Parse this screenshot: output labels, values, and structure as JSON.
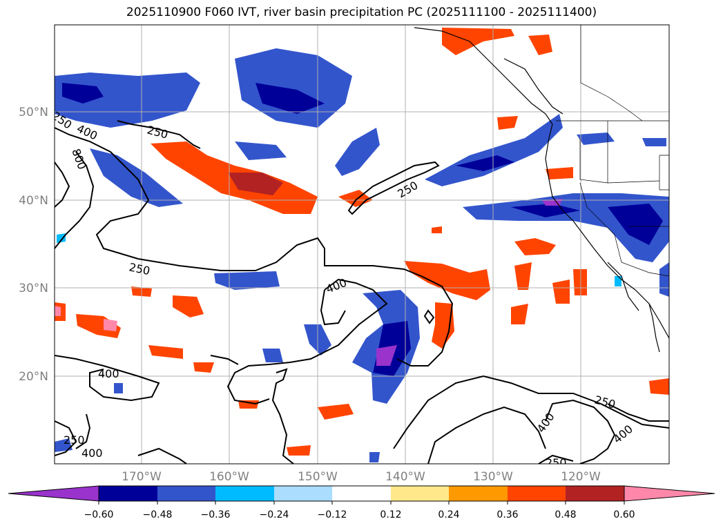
{
  "title": "2025110900 F060 IVT, river basin precipitation PC (2025111100 - 2025111400)",
  "lat_labels": [
    "50°N",
    "40°N",
    "30°N",
    "20°N"
  ],
  "lon_labels": [
    "170°W",
    "160°W",
    "150°W",
    "140°W",
    "130°W",
    "120°W"
  ],
  "colorbar": {
    "ticks": [
      "−0.60",
      "−0.48",
      "−0.36",
      "−0.24",
      "−0.12",
      "0.12",
      "0.24",
      "0.36",
      "0.48",
      "0.60"
    ],
    "colors": [
      "#9933cc",
      "#000099",
      "#3355cc",
      "#00bbff",
      "#aaddff",
      "#ffffff",
      "#ffe88a",
      "#ff9900",
      "#ff4400",
      "#b22222",
      "#ff88aa"
    ]
  },
  "contour_labels": [
    "400",
    "800",
    "250",
    "250",
    "250",
    "400",
    "400",
    "250",
    "400",
    "400",
    "250",
    "400",
    "250",
    "250"
  ],
  "map": {
    "grid": true,
    "coastline_color": "#000000",
    "ivt_contour_color": "#000000",
    "tick_label_color": "#808080"
  }
}
